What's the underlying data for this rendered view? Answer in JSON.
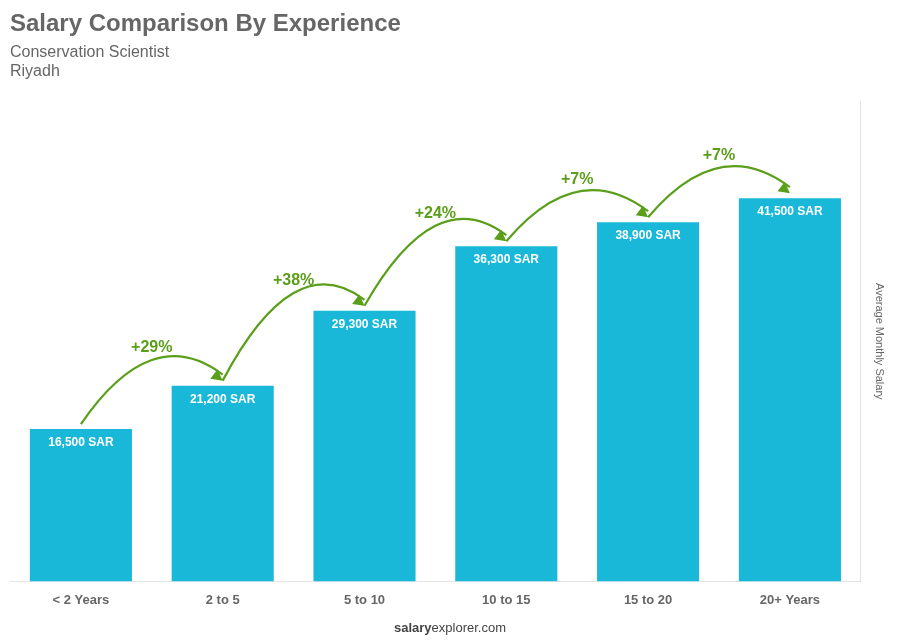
{
  "chart_data": {
    "type": "bar",
    "title": "Salary Comparison By Experience",
    "subtitle": "Conservation Scientist",
    "city": "Riyadh",
    "ylabel": "Average Monthly Salary",
    "footer": "salaryexplorer.com",
    "footer_bold": "salary",
    "categories": [
      "< 2 Years",
      "2 to 5",
      "5 to 10",
      "10 to 15",
      "15 to 20",
      "20+ Years"
    ],
    "values": [
      16500,
      21200,
      29300,
      36300,
      38900,
      41500
    ],
    "value_labels": [
      "16,500 SAR",
      "21,200 SAR",
      "29,300 SAR",
      "36,300 SAR",
      "38,900 SAR",
      "41,500 SAR"
    ],
    "data_labels": true,
    "annotations": [
      "+29%",
      "+38%",
      "+24%",
      "+7%",
      "+7%"
    ],
    "color": "#1ab8d8",
    "ylim": [
      0,
      52000
    ],
    "grid": false,
    "tick_labels": "x"
  }
}
